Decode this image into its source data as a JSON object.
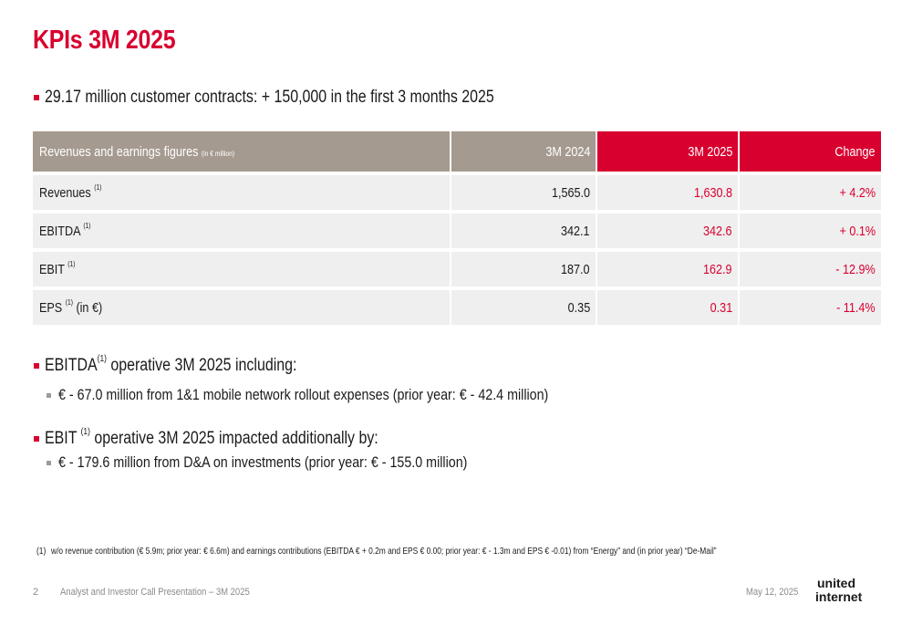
{
  "title": "KPIs 3M 2025",
  "headline": "29.17 million customer contracts: + 150,000 in the first 3 months 2025",
  "table": {
    "header": {
      "label": "Revenues and earnings figures",
      "unit_note": "(in € million)",
      "col_prev": "3M 2024",
      "col_cur": "3M 2025",
      "col_change": "Change"
    },
    "rows": [
      {
        "label": "Revenues",
        "sup": "(1)",
        "suffix": "",
        "prev": "1,565.0",
        "cur": "1,630.8",
        "change": "+ 4.2%"
      },
      {
        "label": "EBITDA",
        "sup": "(1)",
        "suffix": "",
        "prev": "342.1",
        "cur": "342.6",
        "change": "+ 0.1%"
      },
      {
        "label": "EBIT",
        "sup": "(1)",
        "suffix": "",
        "prev": "187.0",
        "cur": "162.9",
        "change": "- 12.9%"
      },
      {
        "label": "EPS",
        "sup": "(1)",
        "suffix": "(in €)",
        "prev": "0.35",
        "cur": "0.31",
        "change": "- 11.4%"
      }
    ]
  },
  "bullets": {
    "ebitda": {
      "lead": "EBITDA",
      "sup": "(1)",
      "rest": "operative 3M 2025 including:",
      "sub": "€ - 67.0 million from 1&1 mobile network rollout expenses (prior year: € - 42.4 million)"
    },
    "ebit": {
      "lead": "EBIT",
      "sup": "(1)",
      "rest": "operative 3M 2025 impacted additionally by:",
      "sub": "€ - 179.6 million from D&A on investments (prior year: € - 155.0 million)"
    }
  },
  "footnote": {
    "num": "(1)",
    "text": "w/o revenue contribution (€ 5.9m; prior year: € 6.6m) and earnings contributions (EBITDA € + 0.2m and EPS € 0.00; prior year: € - 1.3m and EPS € -0.01) from “Energy” and (in prior year) “De-Mail”"
  },
  "footer": {
    "page": "2",
    "doc": "Analyst and Investor Call Presentation – 3M 2025",
    "date": "May 12, 2025"
  },
  "logo": {
    "line1": "united",
    "line2": "internet"
  },
  "colors": {
    "accent": "#d8002f",
    "header_grey": "#a59a8f",
    "row_bg": "#efefef"
  }
}
